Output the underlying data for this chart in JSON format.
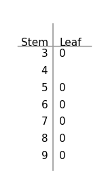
{
  "stems": [
    "3",
    "4",
    "5",
    "6",
    "7",
    "8",
    "9"
  ],
  "leaves": [
    "0",
    "",
    "0",
    "0",
    "0",
    "0",
    "0"
  ],
  "header_stem": "Stem",
  "header_leaf": "Leaf",
  "bg_color": "#ffffff",
  "text_color": "#000000",
  "line_color": "#999999",
  "font_size": 11,
  "header_font_size": 11,
  "fig_width": 1.56,
  "fig_height": 2.8,
  "dpi": 100
}
